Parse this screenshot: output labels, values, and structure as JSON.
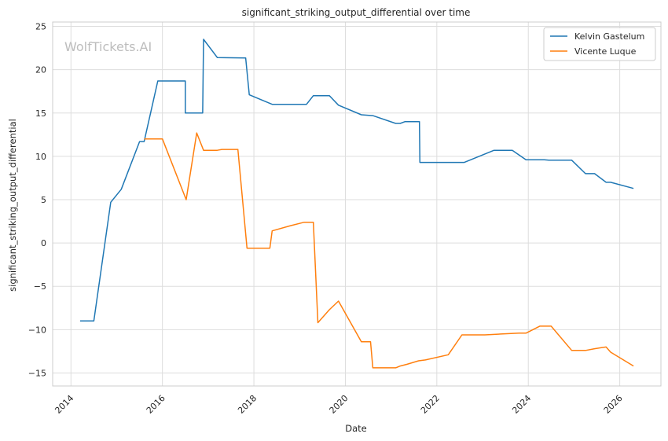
{
  "watermark": "WolfTickets.AI",
  "chart_data": {
    "type": "line",
    "title": "significant_striking_output_differential over time",
    "xlabel": "Date",
    "ylabel": "significant_striking_output_differential",
    "xlim": [
      2013.6,
      2026.9
    ],
    "ylim": [
      -16.5,
      25.5
    ],
    "xticks": [
      2014,
      2016,
      2018,
      2020,
      2022,
      2024,
      2026
    ],
    "yticks": [
      -15,
      -10,
      -5,
      0,
      5,
      10,
      15,
      20,
      25
    ],
    "grid": true,
    "legend_position": "top-right",
    "series": [
      {
        "name": "Kelvin Gastelum",
        "color": "#1f77b4",
        "points": [
          [
            2014.2,
            -9.0
          ],
          [
            2014.5,
            -9.0
          ],
          [
            2014.87,
            4.7
          ],
          [
            2015.1,
            6.2
          ],
          [
            2015.5,
            11.7
          ],
          [
            2015.6,
            11.7
          ],
          [
            2015.9,
            18.7
          ],
          [
            2016.5,
            18.7
          ],
          [
            2016.5,
            15.0
          ],
          [
            2016.88,
            15.0
          ],
          [
            2016.9,
            23.5
          ],
          [
            2017.2,
            21.4
          ],
          [
            2017.82,
            21.35
          ],
          [
            2017.9,
            17.1
          ],
          [
            2018.4,
            16.0
          ],
          [
            2019.15,
            16.0
          ],
          [
            2019.3,
            17.0
          ],
          [
            2019.65,
            17.0
          ],
          [
            2019.85,
            15.9
          ],
          [
            2020.35,
            14.8
          ],
          [
            2020.6,
            14.7
          ],
          [
            2021.1,
            13.8
          ],
          [
            2021.2,
            13.8
          ],
          [
            2021.3,
            14.0
          ],
          [
            2021.62,
            14.0
          ],
          [
            2021.63,
            9.3
          ],
          [
            2022.6,
            9.3
          ],
          [
            2023.25,
            10.7
          ],
          [
            2023.65,
            10.7
          ],
          [
            2023.95,
            9.6
          ],
          [
            2024.35,
            9.6
          ],
          [
            2024.45,
            9.55
          ],
          [
            2024.95,
            9.55
          ],
          [
            2025.25,
            8.0
          ],
          [
            2025.45,
            8.0
          ],
          [
            2025.7,
            7.0
          ],
          [
            2025.8,
            7.0
          ],
          [
            2026.3,
            6.3
          ]
        ]
      },
      {
        "name": "Vicente Luque",
        "color": "#ff7f0e",
        "points": [
          [
            2015.6,
            12.0
          ],
          [
            2016.0,
            12.0
          ],
          [
            2016.52,
            5.0
          ],
          [
            2016.75,
            12.7
          ],
          [
            2016.9,
            10.7
          ],
          [
            2017.2,
            10.7
          ],
          [
            2017.3,
            10.8
          ],
          [
            2017.65,
            10.8
          ],
          [
            2017.85,
            -0.6
          ],
          [
            2018.35,
            -0.6
          ],
          [
            2018.4,
            1.4
          ],
          [
            2018.8,
            2.0
          ],
          [
            2019.1,
            2.4
          ],
          [
            2019.3,
            2.4
          ],
          [
            2019.4,
            -9.2
          ],
          [
            2019.65,
            -7.7
          ],
          [
            2019.85,
            -6.7
          ],
          [
            2020.35,
            -11.4
          ],
          [
            2020.55,
            -11.4
          ],
          [
            2020.6,
            -14.4
          ],
          [
            2021.1,
            -14.4
          ],
          [
            2021.2,
            -14.2
          ],
          [
            2021.35,
            -14.0
          ],
          [
            2021.6,
            -13.6
          ],
          [
            2021.75,
            -13.5
          ],
          [
            2022.25,
            -12.9
          ],
          [
            2022.55,
            -10.6
          ],
          [
            2023.05,
            -10.6
          ],
          [
            2023.4,
            -10.5
          ],
          [
            2023.8,
            -10.4
          ],
          [
            2023.95,
            -10.4
          ],
          [
            2024.25,
            -9.6
          ],
          [
            2024.5,
            -9.6
          ],
          [
            2024.95,
            -12.4
          ],
          [
            2025.25,
            -12.4
          ],
          [
            2025.45,
            -12.2
          ],
          [
            2025.7,
            -12.0
          ],
          [
            2025.8,
            -12.6
          ],
          [
            2026.3,
            -14.2
          ]
        ]
      }
    ]
  }
}
